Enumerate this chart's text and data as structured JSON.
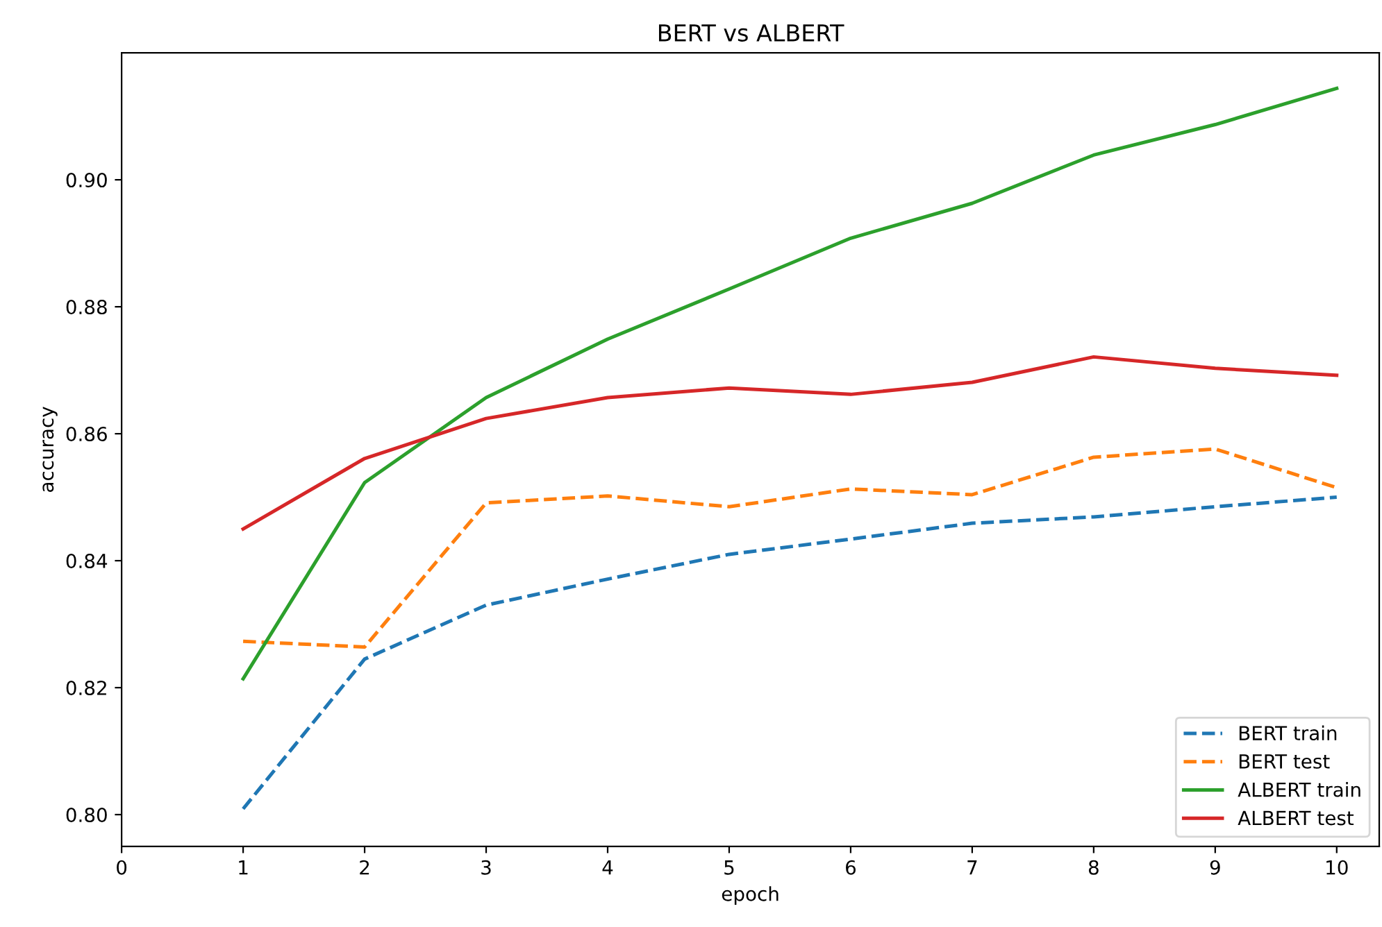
{
  "chart_data": {
    "type": "line",
    "title": "BERT vs ALBERT",
    "xlabel": "epoch",
    "ylabel": "accuracy",
    "x": [
      1,
      2,
      3,
      4,
      5,
      6,
      7,
      8,
      9,
      10
    ],
    "series": [
      {
        "name": "BERT train",
        "color": "#1f77b4",
        "line_style": "dashed",
        "values": [
          0.8009,
          0.8245,
          0.833,
          0.8371,
          0.841,
          0.8434,
          0.8459,
          0.8469,
          0.8485,
          0.85
        ]
      },
      {
        "name": "BERT test",
        "color": "#ff7f0e",
        "line_style": "dashed",
        "values": [
          0.8273,
          0.8264,
          0.8491,
          0.8502,
          0.8485,
          0.8513,
          0.8504,
          0.8563,
          0.8576,
          0.8515
        ]
      },
      {
        "name": "ALBERT train",
        "color": "#2ca02c",
        "line_style": "solid",
        "values": [
          0.8214,
          0.8523,
          0.8657,
          0.8749,
          0.8828,
          0.8908,
          0.8963,
          0.9039,
          0.9087,
          0.9144
        ]
      },
      {
        "name": "ALBERT test",
        "color": "#d62728",
        "line_style": "solid",
        "values": [
          0.845,
          0.8561,
          0.8624,
          0.8657,
          0.8672,
          0.8662,
          0.8681,
          0.8721,
          0.8703,
          0.8692
        ]
      }
    ],
    "xlim": [
      0,
      10.35
    ],
    "xticks": [
      0,
      1,
      2,
      3,
      4,
      5,
      6,
      7,
      8,
      9,
      10
    ],
    "ylim": [
      0.795,
      0.92
    ],
    "yticks": [
      {
        "value": 0.8,
        "label": "0.80"
      },
      {
        "value": 0.82,
        "label": "0.82"
      },
      {
        "value": 0.84,
        "label": "0.84"
      },
      {
        "value": 0.86,
        "label": "0.86"
      },
      {
        "value": 0.88,
        "label": "0.88"
      },
      {
        "value": 0.9,
        "label": "0.90"
      }
    ],
    "legend": "lower right",
    "grid": false,
    "marker": "none"
  }
}
